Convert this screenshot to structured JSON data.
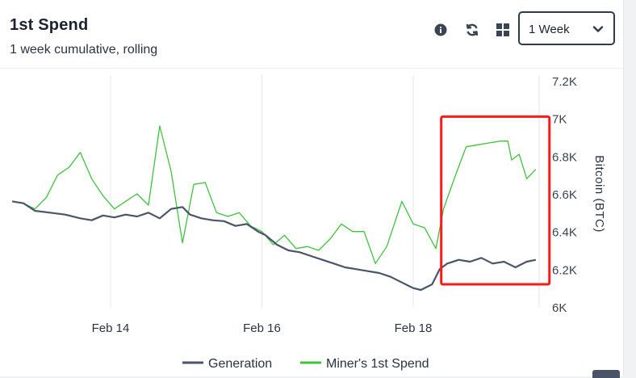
{
  "header": {
    "title": "1st Spend",
    "subtitle": "1 week cumulative, rolling",
    "info_icon": "info-icon",
    "refresh_icon": "refresh-icon",
    "grid_icon": "grid-icon",
    "range_select": {
      "value": "1 Week",
      "icon": "chevron-down-icon"
    }
  },
  "colors": {
    "generation": "#4a5568",
    "first_spend": "#3fc33f",
    "highlight": "#ff1a1a"
  },
  "chart_data": {
    "type": "line",
    "x_ticks": [
      "Feb 14",
      "Feb 16",
      "Feb 18"
    ],
    "y_ticks": [
      "7.2K",
      "7K",
      "6.8K",
      "6.6K",
      "6.4K",
      "6.2K",
      "6K"
    ],
    "ylabel": "Bitcoin (BTC)",
    "ylim": [
      6000,
      7200
    ],
    "xlim": [
      "Feb 12 16:00",
      "Feb 19 18:00"
    ],
    "grid": {
      "vertical": true,
      "horizontal": false
    },
    "legend_position": "bottom",
    "series": [
      {
        "name": "Generation",
        "color": "#4a5568",
        "values": [
          [
            12.7,
            6560
          ],
          [
            12.85,
            6550
          ],
          [
            13.0,
            6510
          ],
          [
            13.2,
            6500
          ],
          [
            13.4,
            6490
          ],
          [
            13.6,
            6470
          ],
          [
            13.75,
            6460
          ],
          [
            13.9,
            6485
          ],
          [
            14.05,
            6475
          ],
          [
            14.2,
            6490
          ],
          [
            14.35,
            6480
          ],
          [
            14.5,
            6500
          ],
          [
            14.65,
            6470
          ],
          [
            14.8,
            6520
          ],
          [
            14.95,
            6530
          ],
          [
            15.05,
            6490
          ],
          [
            15.2,
            6470
          ],
          [
            15.35,
            6460
          ],
          [
            15.5,
            6455
          ],
          [
            15.65,
            6430
          ],
          [
            15.8,
            6440
          ],
          [
            15.95,
            6400
          ],
          [
            16.05,
            6380
          ],
          [
            16.2,
            6330
          ],
          [
            16.35,
            6300
          ],
          [
            16.5,
            6290
          ],
          [
            16.65,
            6270
          ],
          [
            16.8,
            6250
          ],
          [
            16.95,
            6230
          ],
          [
            17.1,
            6210
          ],
          [
            17.25,
            6200
          ],
          [
            17.4,
            6190
          ],
          [
            17.55,
            6180
          ],
          [
            17.7,
            6160
          ],
          [
            17.85,
            6130
          ],
          [
            18.0,
            6100
          ],
          [
            18.1,
            6090
          ],
          [
            18.25,
            6120
          ],
          [
            18.35,
            6200
          ],
          [
            18.45,
            6230
          ],
          [
            18.6,
            6250
          ],
          [
            18.75,
            6240
          ],
          [
            18.9,
            6260
          ],
          [
            19.05,
            6230
          ],
          [
            19.2,
            6240
          ],
          [
            19.35,
            6210
          ],
          [
            19.5,
            6240
          ],
          [
            19.62,
            6250
          ]
        ]
      },
      {
        "name": "Miner's 1st Spend",
        "color": "#3fc33f",
        "values": [
          [
            12.7,
            6560
          ],
          [
            12.85,
            6550
          ],
          [
            13.0,
            6520
          ],
          [
            13.15,
            6580
          ],
          [
            13.3,
            6700
          ],
          [
            13.45,
            6740
          ],
          [
            13.6,
            6820
          ],
          [
            13.75,
            6680
          ],
          [
            13.9,
            6590
          ],
          [
            14.05,
            6520
          ],
          [
            14.2,
            6560
          ],
          [
            14.35,
            6600
          ],
          [
            14.5,
            6540
          ],
          [
            14.65,
            6960
          ],
          [
            14.8,
            6720
          ],
          [
            14.95,
            6340
          ],
          [
            15.1,
            6650
          ],
          [
            15.25,
            6660
          ],
          [
            15.4,
            6500
          ],
          [
            15.55,
            6480
          ],
          [
            15.7,
            6500
          ],
          [
            15.85,
            6430
          ],
          [
            16.0,
            6400
          ],
          [
            16.15,
            6330
          ],
          [
            16.3,
            6380
          ],
          [
            16.45,
            6310
          ],
          [
            16.6,
            6320
          ],
          [
            16.75,
            6300
          ],
          [
            16.9,
            6360
          ],
          [
            17.05,
            6440
          ],
          [
            17.2,
            6400
          ],
          [
            17.35,
            6400
          ],
          [
            17.5,
            6230
          ],
          [
            17.65,
            6320
          ],
          [
            17.85,
            6560
          ],
          [
            18.0,
            6440
          ],
          [
            18.15,
            6420
          ],
          [
            18.3,
            6310
          ],
          [
            18.4,
            6520
          ],
          [
            18.55,
            6690
          ],
          [
            18.7,
            6850
          ],
          [
            18.85,
            6860
          ],
          [
            19.0,
            6870
          ],
          [
            19.15,
            6880
          ],
          [
            19.25,
            6880
          ],
          [
            19.3,
            6780
          ],
          [
            19.4,
            6810
          ],
          [
            19.5,
            6680
          ],
          [
            19.62,
            6730
          ]
        ]
      }
    ],
    "highlight_box": {
      "x_range": [
        18.37,
        19.8
      ],
      "y_range": [
        6120,
        7010
      ],
      "color": "#ff1a1a"
    }
  }
}
